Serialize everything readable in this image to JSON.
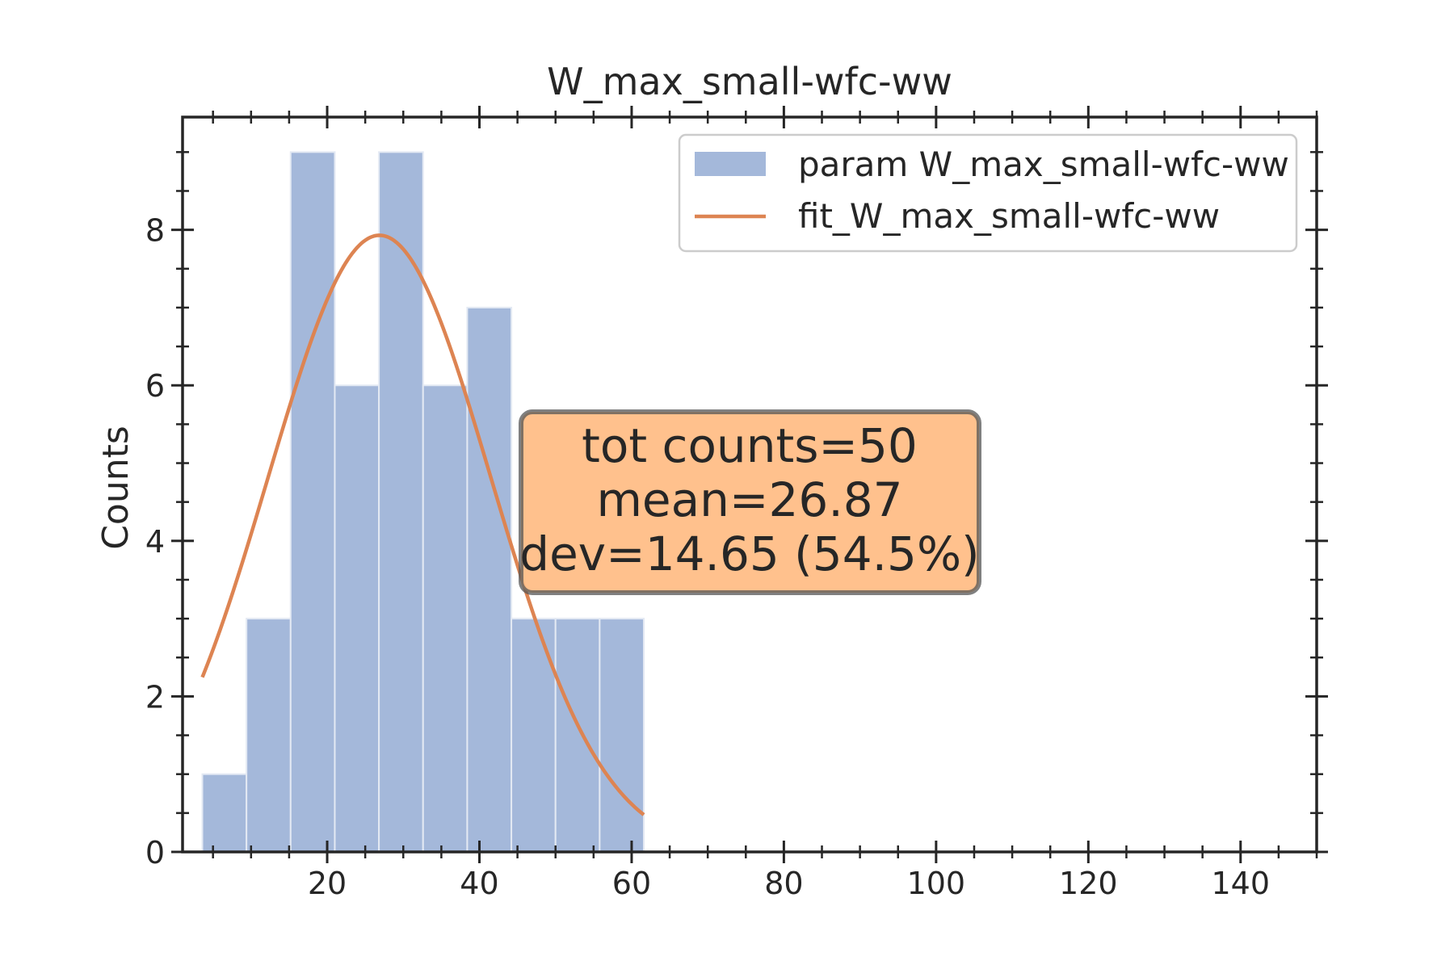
{
  "chart_data": {
    "type": "bar",
    "title": "W_max_small-wfc-ww",
    "xlabel": "",
    "ylabel": "Counts",
    "xlim": [
      1,
      150
    ],
    "ylim": [
      0,
      9.45
    ],
    "xticks": [
      20,
      40,
      60,
      80,
      100,
      120,
      140
    ],
    "xtick_labels": [
      "20",
      "40",
      "60",
      "80",
      "100",
      "120",
      "140"
    ],
    "yticks": [
      0,
      2,
      4,
      6,
      8
    ],
    "ytick_labels": [
      "0",
      "2",
      "4",
      "6",
      "8"
    ],
    "grid": false,
    "legend_position": "top-right",
    "bins": [
      {
        "x0": 3.6,
        "x1": 9.4,
        "count": 1
      },
      {
        "x0": 9.4,
        "x1": 15.2,
        "count": 3
      },
      {
        "x0": 15.2,
        "x1": 21.0,
        "count": 9
      },
      {
        "x0": 21.0,
        "x1": 26.8,
        "count": 6
      },
      {
        "x0": 26.8,
        "x1": 32.6,
        "count": 9
      },
      {
        "x0": 32.6,
        "x1": 38.4,
        "count": 6
      },
      {
        "x0": 38.4,
        "x1": 44.2,
        "count": 7
      },
      {
        "x0": 44.2,
        "x1": 50.0,
        "count": 3
      },
      {
        "x0": 50.0,
        "x1": 55.8,
        "count": 3
      },
      {
        "x0": 55.8,
        "x1": 61.6,
        "count": 3
      }
    ],
    "series": [
      {
        "name": "param W_max_small-wfc-ww",
        "kind": "histogram",
        "color": "#a4b8da"
      },
      {
        "name": "fit_W_max_small-wfc-ww",
        "kind": "gaussian-fit",
        "color": "#dd8452",
        "amplitude": 7.93,
        "mean": 26.87,
        "sigma": 14.65,
        "x_range": [
          3.6,
          61.6
        ]
      }
    ],
    "annotation": {
      "lines": [
        "tot counts=50",
        "mean=26.87",
        "dev=14.65 (54.5%)"
      ],
      "background": "#ffbe87"
    }
  }
}
